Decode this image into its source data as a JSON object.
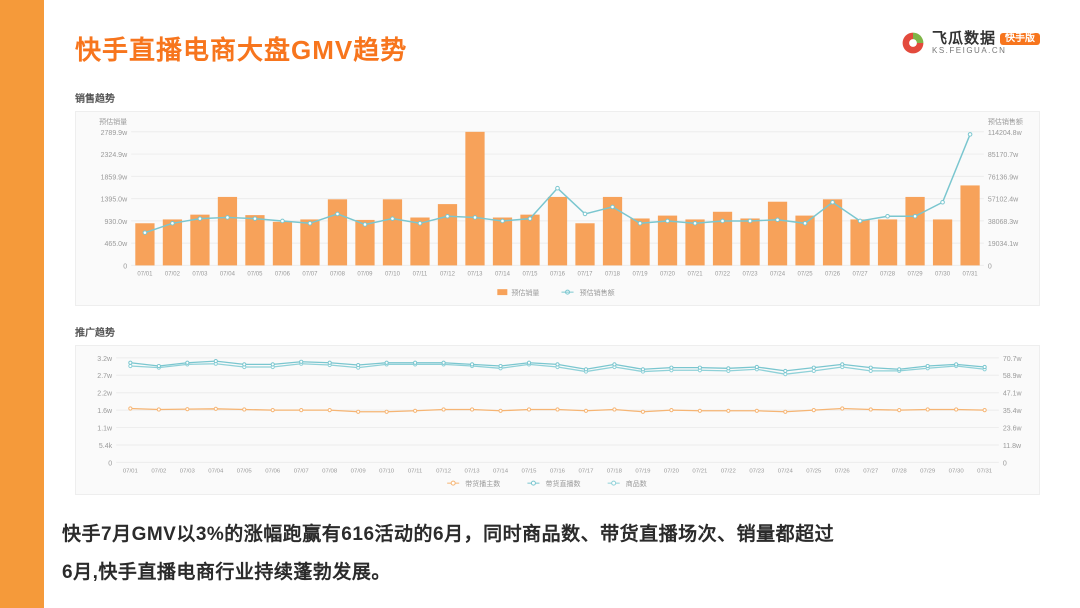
{
  "page": {
    "title": "快手直播电商大盘GMV趋势",
    "footer_line1": "快手7月GMV以3%的涨幅跑赢有616活动的6月，同时商品数、带货直播场次、销量都超过",
    "footer_line2": "6月,快手直播电商行业持续蓬勃发展。"
  },
  "brand": {
    "name": "飞瓜数据",
    "badge": "快手版",
    "sub": "KS.FEIGUA.CN",
    "logo_green": "#7fb547",
    "logo_red": "#e34a3c"
  },
  "colors": {
    "accent": "#f7751d",
    "bar": "#f7a25a",
    "line_blue": "#7ac6cf",
    "line_orange": "#f6b574",
    "line_teal": "#8fd1d8",
    "grid": "#ececec",
    "axis_text": "#9a9a9a",
    "chart_bg": "#fafafa",
    "border": "#eeeeee",
    "sidebar": "#f59a3a"
  },
  "chart1": {
    "title": "销售趋势",
    "type": "bar+line",
    "left_label": "预估销量",
    "right_label": "预估销售额",
    "left_ticks": [
      "2789.9w",
      "2324.9w",
      "1859.9w",
      "1395.0w",
      "930.0w",
      "465.0w",
      "0"
    ],
    "right_ticks": [
      "114204.8w",
      "85170.7w",
      "76136.9w",
      "57102.4w",
      "38068.3w",
      "19034.1w",
      "0"
    ],
    "x_labels": [
      "07/01",
      "07/02",
      "07/03",
      "07/04",
      "07/05",
      "07/06",
      "07/07",
      "07/08",
      "07/09",
      "07/10",
      "07/11",
      "07/12",
      "07/13",
      "07/14",
      "07/15",
      "07/16",
      "07/17",
      "07/18",
      "07/19",
      "07/20",
      "07/21",
      "07/22",
      "07/23",
      "07/24",
      "07/25",
      "07/26",
      "07/27",
      "07/28",
      "07/29",
      "07/30",
      "07/31"
    ],
    "y_max": 2789.9,
    "bar_values": [
      880,
      960,
      1060,
      1430,
      1050,
      910,
      960,
      1380,
      950,
      1380,
      1000,
      1280,
      2789,
      1000,
      1060,
      1430,
      880,
      1430,
      980,
      1040,
      960,
      1120,
      980,
      1330,
      1040,
      1380,
      960,
      960,
      1430,
      960,
      1670
    ],
    "line_max": 114204.8,
    "line_values": [
      28000,
      36000,
      40000,
      41000,
      40000,
      38000,
      36000,
      44000,
      35000,
      40000,
      36000,
      42000,
      41000,
      38000,
      40000,
      66000,
      44000,
      50000,
      36000,
      38000,
      36000,
      38000,
      38000,
      39000,
      36000,
      54000,
      38000,
      42000,
      42000,
      54000,
      112000
    ],
    "legend": [
      "预估销量",
      "预估销售额"
    ]
  },
  "chart2": {
    "title": "推广趋势",
    "type": "multi-line",
    "left_ticks": [
      "3.2w",
      "2.7w",
      "2.2w",
      "1.6w",
      "1.1w",
      "5.4k",
      "0"
    ],
    "right_ticks": [
      "70.7w",
      "58.9w",
      "47.1w",
      "35.4w",
      "23.6w",
      "11.8w",
      "0"
    ],
    "x_labels": [
      "07/01",
      "07/02",
      "07/03",
      "07/04",
      "07/05",
      "07/06",
      "07/07",
      "07/08",
      "07/09",
      "07/10",
      "07/11",
      "07/12",
      "07/13",
      "07/14",
      "07/15",
      "07/16",
      "07/17",
      "07/18",
      "07/19",
      "07/20",
      "07/21",
      "07/22",
      "07/23",
      "07/24",
      "07/25",
      "07/26",
      "07/27",
      "07/28",
      "07/29",
      "07/30",
      "07/31"
    ],
    "y_max_left": 3.2,
    "line_orange_values": [
      1.65,
      1.62,
      1.63,
      1.64,
      1.62,
      1.6,
      1.6,
      1.6,
      1.55,
      1.55,
      1.58,
      1.62,
      1.62,
      1.58,
      1.62,
      1.62,
      1.58,
      1.62,
      1.55,
      1.6,
      1.58,
      1.58,
      1.58,
      1.55,
      1.6,
      1.65,
      1.62,
      1.6,
      1.62,
      1.62,
      1.6
    ],
    "line_blue_values": [
      3.05,
      2.95,
      3.05,
      3.1,
      3.0,
      3.0,
      3.08,
      3.05,
      2.98,
      3.05,
      3.05,
      3.05,
      3.0,
      2.95,
      3.05,
      3.0,
      2.85,
      3.0,
      2.85,
      2.9,
      2.9,
      2.88,
      2.92,
      2.8,
      2.9,
      3.0,
      2.9,
      2.85,
      2.95,
      3.0,
      2.92
    ],
    "line_teal_values": [
      2.95,
      2.9,
      3.0,
      3.02,
      2.92,
      2.92,
      3.02,
      2.98,
      2.9,
      3.0,
      3.0,
      3.0,
      2.95,
      2.88,
      3.0,
      2.92,
      2.78,
      2.92,
      2.78,
      2.82,
      2.82,
      2.8,
      2.85,
      2.7,
      2.8,
      2.92,
      2.8,
      2.8,
      2.88,
      2.95,
      2.85
    ],
    "legend": [
      "带货播主数",
      "带货直播数",
      "商品数"
    ]
  }
}
